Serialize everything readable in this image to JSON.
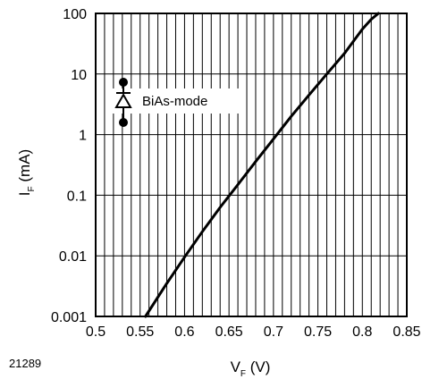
{
  "figure_id": "21289",
  "chart_data": {
    "type": "line",
    "x_label": {
      "main": "V",
      "sub": "F",
      "unit": " (V)"
    },
    "y_label": {
      "main": "I",
      "sub": "F",
      "unit": " (mA)"
    },
    "x_scale": "linear",
    "y_scale": "log",
    "xlim": [
      0.5,
      0.85
    ],
    "ylim": [
      0.001,
      100
    ],
    "x_ticks": [
      0.5,
      0.55,
      0.6,
      0.65,
      0.7,
      0.75,
      0.8,
      0.85
    ],
    "x_tick_labels": [
      "0.5",
      "0.55",
      "0.6",
      "0.65",
      "0.7",
      "0.75",
      "0.8",
      "0.85"
    ],
    "y_ticks": [
      0.001,
      0.01,
      0.1,
      1,
      10,
      100
    ],
    "y_tick_labels": [
      "0.001",
      "0.01",
      "0.1",
      "1",
      "10",
      "100"
    ],
    "grid": {
      "vertical_minor_step": 0.01,
      "horizontal_at_decades": true
    },
    "legend": {
      "label": "BiAs-mode",
      "symbol": "diode-icon",
      "placement": "upper-left"
    },
    "series": [
      {
        "color": "#000000",
        "points": [
          {
            "x": 0.556,
            "y": 0.001
          },
          {
            "x": 0.58,
            "y": 0.0035
          },
          {
            "x": 0.6,
            "y": 0.0095
          },
          {
            "x": 0.62,
            "y": 0.025
          },
          {
            "x": 0.64,
            "y": 0.063
          },
          {
            "x": 0.66,
            "y": 0.15
          },
          {
            "x": 0.68,
            "y": 0.36
          },
          {
            "x": 0.7,
            "y": 0.85
          },
          {
            "x": 0.72,
            "y": 2.0
          },
          {
            "x": 0.74,
            "y": 4.5
          },
          {
            "x": 0.76,
            "y": 10
          },
          {
            "x": 0.78,
            "y": 22
          },
          {
            "x": 0.8,
            "y": 55
          },
          {
            "x": 0.81,
            "y": 80
          },
          {
            "x": 0.818,
            "y": 100
          }
        ]
      }
    ]
  }
}
